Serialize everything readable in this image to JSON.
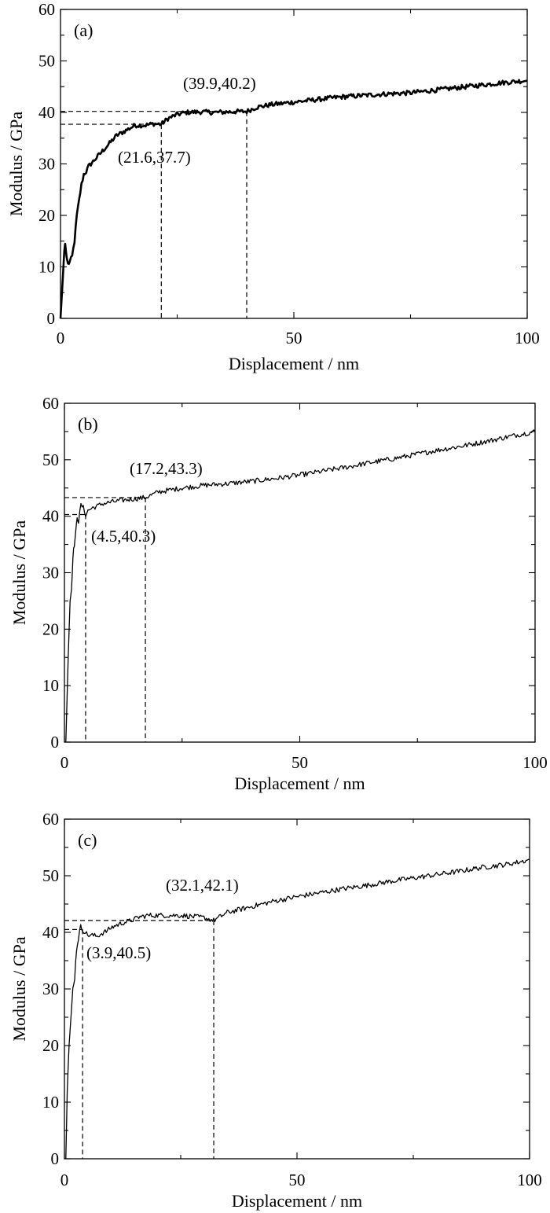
{
  "chart_data": [
    {
      "type": "line",
      "panel_label": "(a)",
      "xlabel": "Displacement / nm",
      "ylabel": "Modulus / GPa",
      "xlim": [
        0,
        100
      ],
      "ylim": [
        0,
        60
      ],
      "xticks": [
        "0",
        "50",
        "100"
      ],
      "yticks": [
        "0",
        "10",
        "20",
        "30",
        "40",
        "50",
        "60"
      ],
      "grid": false,
      "series": [
        {
          "x": [
            0,
            0.5,
            0.8,
            1.0,
            1.3,
            1.6,
            2.0,
            2.5,
            3.0,
            3.5,
            4.0,
            4.5,
            5.0,
            5.5,
            6.0,
            7.0,
            8.0,
            9.0,
            10.0,
            11.0,
            12.0,
            13.0,
            14.0,
            15.0,
            16.0,
            18.0,
            20.0,
            21.6,
            23.0,
            25.0,
            27.0,
            30.0,
            33.0,
            36.0,
            39.9,
            42.0,
            45.0,
            50.0,
            55.0,
            60.0,
            65.0,
            70.0,
            75.0,
            80.0,
            85.0,
            90.0,
            95.0,
            100.0
          ],
          "y": [
            0,
            8,
            13,
            14.5,
            12,
            10.5,
            11,
            12,
            15,
            20,
            23,
            26,
            28,
            28.5,
            29.5,
            30.5,
            31.5,
            32.5,
            33.5,
            34.5,
            35.5,
            36,
            36.5,
            37,
            37.5,
            37.5,
            37.8,
            37.7,
            38.8,
            39.6,
            40.0,
            40.1,
            40.0,
            40.1,
            40.2,
            41.0,
            41.5,
            42.0,
            42.5,
            43.0,
            43.3,
            43.6,
            43.8,
            44.3,
            44.8,
            45.3,
            45.8,
            46.2
          ]
        }
      ],
      "reference_points": [
        {
          "x": 21.6,
          "y": 37.7
        },
        {
          "x": 39.9,
          "y": 40.2
        }
      ],
      "annotations": [
        "(21.6,37.7)",
        "(39.9,40.2)"
      ]
    },
    {
      "type": "line",
      "panel_label": "(b)",
      "xlabel": "Displacement / nm",
      "ylabel": "Modulus / GPa",
      "xlim": [
        0,
        100
      ],
      "ylim": [
        0,
        60
      ],
      "xticks": [
        "0",
        "50",
        "100"
      ],
      "yticks": [
        "0",
        "10",
        "20",
        "30",
        "40",
        "50",
        "60"
      ],
      "grid": false,
      "series": [
        {
          "x": [
            0.3,
            0.8,
            1.2,
            1.5,
            1.8,
            2.1,
            2.4,
            2.7,
            3.0,
            3.5,
            4.0,
            4.5,
            5.0,
            6.0,
            7.0,
            8.0,
            10.0,
            12.0,
            14.0,
            17.2,
            20.0,
            25.0,
            30.0,
            35.0,
            40.0,
            45.0,
            50.0,
            55.0,
            60.0,
            65.0,
            70.0,
            75.0,
            80.0,
            85.0,
            90.0,
            95.0,
            100.0
          ],
          "y": [
            0,
            15,
            25,
            27,
            33,
            35,
            37,
            40,
            39,
            42,
            41.5,
            40.3,
            41,
            41.5,
            41.8,
            42.2,
            42.5,
            42.8,
            43.0,
            43.3,
            44.3,
            45.0,
            45.5,
            45.8,
            46.2,
            46.7,
            47.3,
            48.0,
            48.7,
            49.5,
            50.2,
            51.0,
            51.8,
            52.5,
            53.3,
            54.2,
            55.0
          ]
        }
      ],
      "reference_points": [
        {
          "x": 4.5,
          "y": 40.3
        },
        {
          "x": 17.2,
          "y": 43.3
        }
      ],
      "annotations": [
        "(4.5,40.3)",
        "(17.2,43.3)"
      ]
    },
    {
      "type": "line",
      "panel_label": "(c)",
      "xlabel": "Displacement / nm",
      "ylabel": "Modulus / GPa",
      "xlim": [
        0,
        100
      ],
      "ylim": [
        0,
        60
      ],
      "xticks": [
        "0",
        "50",
        "100"
      ],
      "yticks": [
        "0",
        "10",
        "20",
        "30",
        "40",
        "50",
        "60"
      ],
      "grid": false,
      "series": [
        {
          "x": [
            0.3,
            0.6,
            1.0,
            1.4,
            1.8,
            2.2,
            2.6,
            3.0,
            3.5,
            3.9,
            4.5,
            5.0,
            6.0,
            7.0,
            8.0,
            9.0,
            10.0,
            11.0,
            12.0,
            13.0,
            14.0,
            15.0,
            16.0,
            18.0,
            20.0,
            25.0,
            30.0,
            32.1,
            35.0,
            40.0,
            45.0,
            50.0,
            55.0,
            60.0,
            65.0,
            70.0,
            75.0,
            80.0,
            85.0,
            90.0,
            95.0,
            100.0
          ],
          "y": [
            0,
            12,
            20,
            25,
            30,
            32,
            37,
            39,
            41,
            40.5,
            40,
            39.5,
            39.5,
            39.3,
            39.8,
            40.2,
            40.8,
            41.2,
            41.5,
            41.8,
            42.0,
            42.3,
            42.7,
            43.0,
            43.0,
            43.0,
            42.6,
            42.1,
            43.5,
            44.5,
            45.5,
            46.3,
            47.0,
            47.7,
            48.3,
            49.0,
            49.6,
            50.2,
            50.8,
            51.5,
            52.0,
            52.8
          ]
        }
      ],
      "reference_points": [
        {
          "x": 3.9,
          "y": 40.5
        },
        {
          "x": 32.1,
          "y": 42.1
        }
      ],
      "annotations": [
        "(3.9,40.5)",
        "(32.1,42.1)"
      ]
    }
  ]
}
